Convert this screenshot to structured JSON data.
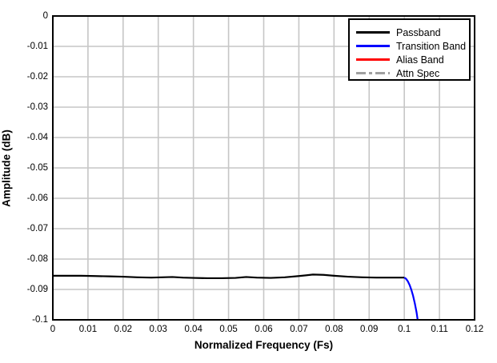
{
  "figure": {
    "background": "#ffffff"
  },
  "chart_data": {
    "type": "line",
    "title": "",
    "xlabel": "Normalized Frequency (Fs)",
    "ylabel": "Amplitude (dB)",
    "xlim": [
      0,
      0.12
    ],
    "ylim": [
      -0.1,
      0
    ],
    "grid": true,
    "grid_color": "#c6c6c6",
    "axis_color": "#000000",
    "x_ticks": [
      0,
      0.01,
      0.02,
      0.03,
      0.04,
      0.05,
      0.06,
      0.07,
      0.08,
      0.09,
      0.1,
      0.11,
      0.12
    ],
    "x_tick_labels": [
      "0",
      "0.01",
      "0.02",
      "0.03",
      "0.04",
      "0.05",
      "0.06",
      "0.07",
      "0.08",
      "0.09",
      "0.1",
      "0.11",
      "0.12"
    ],
    "y_ticks": [
      0,
      -0.01,
      -0.02,
      -0.03,
      -0.04,
      -0.05,
      -0.06,
      -0.07,
      -0.08,
      -0.09,
      -0.1
    ],
    "y_tick_labels": [
      "0",
      "-0.01",
      "-0.02",
      "-0.03",
      "-0.04",
      "-0.05",
      "-0.06",
      "-0.07",
      "-0.08",
      "-0.09",
      "-0.1"
    ],
    "legend": {
      "position": "top-right",
      "border_color": "#000000"
    },
    "series": [
      {
        "name": "Passband",
        "color": "#000000",
        "dash": false,
        "points": [
          [
            0.0,
            -0.0855
          ],
          [
            0.004,
            -0.0855
          ],
          [
            0.008,
            -0.0855
          ],
          [
            0.012,
            -0.0856
          ],
          [
            0.016,
            -0.0857
          ],
          [
            0.02,
            -0.0858
          ],
          [
            0.024,
            -0.086
          ],
          [
            0.028,
            -0.0861
          ],
          [
            0.031,
            -0.086
          ],
          [
            0.034,
            -0.0859
          ],
          [
            0.037,
            -0.0861
          ],
          [
            0.04,
            -0.0862
          ],
          [
            0.044,
            -0.0863
          ],
          [
            0.048,
            -0.0863
          ],
          [
            0.052,
            -0.0862
          ],
          [
            0.055,
            -0.0859
          ],
          [
            0.058,
            -0.0861
          ],
          [
            0.062,
            -0.0862
          ],
          [
            0.066,
            -0.086
          ],
          [
            0.07,
            -0.0856
          ],
          [
            0.074,
            -0.0851
          ],
          [
            0.077,
            -0.0852
          ],
          [
            0.08,
            -0.0855
          ],
          [
            0.084,
            -0.0858
          ],
          [
            0.088,
            -0.086
          ],
          [
            0.092,
            -0.0861
          ],
          [
            0.096,
            -0.0861
          ],
          [
            0.1,
            -0.0861
          ]
        ]
      },
      {
        "name": "Transition Band",
        "color": "#0000ff",
        "dash": false,
        "points": [
          [
            0.1,
            -0.0861
          ],
          [
            0.1005,
            -0.0865
          ],
          [
            0.101,
            -0.0873
          ],
          [
            0.1015,
            -0.0885
          ],
          [
            0.102,
            -0.0901
          ],
          [
            0.1025,
            -0.0921
          ],
          [
            0.103,
            -0.0946
          ],
          [
            0.1035,
            -0.0976
          ],
          [
            0.1038,
            -0.1
          ],
          [
            0.104,
            -0.102
          ]
        ]
      },
      {
        "name": "Alias Band",
        "color": "#ff0000",
        "dash": false,
        "points": []
      },
      {
        "name": "Attn Spec",
        "color": "#a0a0a0",
        "dash": true,
        "points": []
      }
    ]
  }
}
